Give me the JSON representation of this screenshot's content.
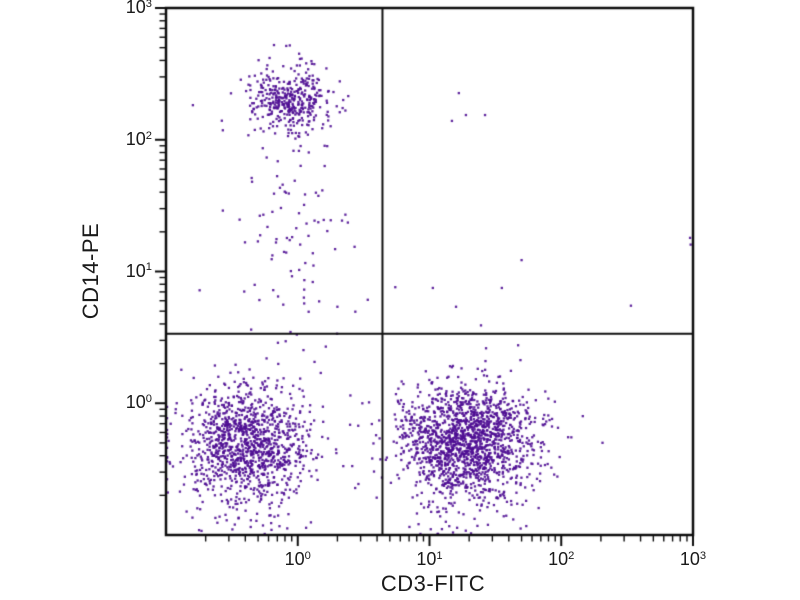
{
  "figure": {
    "background": "#ffffff"
  },
  "chart_data": {
    "type": "scatter",
    "subtype": "flow-cytometry-dot-plot",
    "title": "",
    "xlabel": "CD3-FITC",
    "ylabel": "CD14-PE",
    "x_scale": "log",
    "y_scale": "log",
    "xlim": [
      0.1,
      1000
    ],
    "ylim": [
      0.1,
      1000
    ],
    "xlim_log": [
      -1,
      3
    ],
    "ylim_log": [
      -1,
      3
    ],
    "x_tick_exponents": [
      0,
      1,
      2,
      3
    ],
    "y_tick_exponents": [
      0,
      1,
      2,
      3
    ],
    "grid": false,
    "legend": "none",
    "quadrant_gate": {
      "x_value": 4.4,
      "y_value": 3.4,
      "x_log": 0.643,
      "y_log": 0.527
    },
    "colors": {
      "dots": "#4f0e93",
      "axis": "#0d0d0d",
      "gate_lines": "#111111",
      "text": "#1a1a1a"
    },
    "dot_size_px": 2.3,
    "dot_alpha": 0.9,
    "seed": 7,
    "clusters": [
      {
        "name": "CD14+ monocytes (upper-left)",
        "type": "gaussian",
        "count": 380,
        "center_log": [
          -0.055,
          2.31
        ],
        "sigma_log": [
          0.145,
          0.125
        ]
      },
      {
        "name": "monocyte downward trail",
        "type": "gaussian",
        "count": 95,
        "center_log": [
          -0.07,
          1.4
        ],
        "sigma_log": [
          0.17,
          0.52
        ]
      },
      {
        "name": "CD3- CD14- cells (lower-left)",
        "type": "gaussian",
        "count": 1150,
        "center_log": [
          -0.38,
          -0.29
        ],
        "sigma_log": [
          0.235,
          0.205
        ]
      },
      {
        "name": "lower-left bottom tail",
        "type": "uniform",
        "count": 35,
        "x_log_range": [
          -0.85,
          -0.05
        ],
        "y_log_range": [
          -1.0,
          -0.6
        ]
      },
      {
        "name": "CD3+ T cells (lower-right)",
        "type": "gaussian",
        "count": 1600,
        "center_log": [
          1.29,
          -0.28
        ],
        "sigma_log": [
          0.26,
          0.215
        ]
      },
      {
        "name": "lower-right bottom tail",
        "type": "uniform",
        "count": 55,
        "x_log_range": [
          0.9,
          1.7
        ],
        "y_log_range": [
          -1.0,
          -0.55
        ]
      },
      {
        "name": "sparse background lower-left quadrant",
        "type": "uniform",
        "count": 30,
        "x_log_range": [
          -1.0,
          0.6
        ],
        "y_log_range": [
          -1.0,
          0.5
        ]
      }
    ],
    "outlier_points": [
      [
        16.7,
        226
      ],
      [
        14.8,
        139
      ],
      [
        18.9,
        154
      ],
      [
        26.4,
        154
      ],
      [
        950,
        18
      ],
      [
        960,
        16
      ],
      [
        50,
        12.2
      ],
      [
        10.6,
        7.5
      ],
      [
        35.4,
        7.5
      ],
      [
        15.9,
        5.4
      ],
      [
        338,
        5.5
      ],
      [
        24.6,
        3.9
      ],
      [
        5.5,
        7.6
      ],
      [
        0.16,
        183
      ],
      [
        0.27,
        118
      ],
      [
        0.87,
        520
      ],
      [
        0.18,
        7.2
      ],
      [
        0.27,
        29
      ],
      [
        2.3,
        27
      ],
      [
        2.7,
        15.4
      ],
      [
        1.6,
        90
      ],
      [
        0.45,
        48
      ],
      [
        3.4,
        6.1
      ],
      [
        2.0,
        5.4
      ]
    ]
  }
}
